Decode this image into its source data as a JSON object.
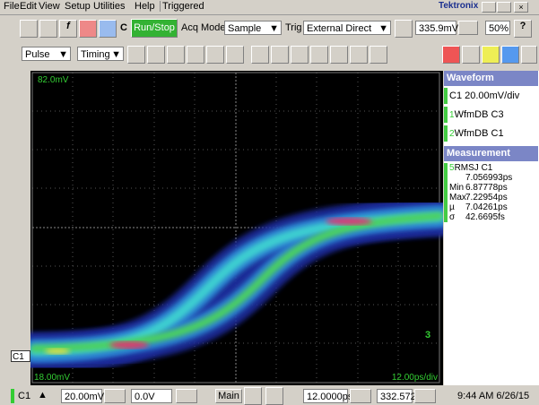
{
  "menu": [
    "File",
    "Edit",
    "View",
    "Setup",
    "Utilities",
    "Help"
  ],
  "status": "Triggered",
  "brand": "Tektronix",
  "toolbar": {
    "c_label": "C",
    "run_stop": "Run/Stop",
    "acq_mode_label": "Acq Mode",
    "acq_mode": "Sample",
    "trig_label": "Trig",
    "trig_source": "External Direct",
    "trig_level": "335.9mV",
    "zoom": "50%"
  },
  "toolbar2": {
    "pulse": "Pulse",
    "timing": "Timing"
  },
  "display": {
    "top_label": "82.0mV",
    "bottom_label": "18.00mV",
    "timebase_label": "12.00ps/div",
    "marker_3": "3",
    "channel_marker": "C1"
  },
  "panel": {
    "waveform_header": "Waveform",
    "scale": "C1 20.00mV/div",
    "items": [
      {
        "index": "1",
        "label": "WfmDB C3"
      },
      {
        "index": "2",
        "label": "WfmDB C1"
      }
    ],
    "measurement_header": "Measurement",
    "measurement": {
      "index": "5",
      "name": "RMSJ C1",
      "value": "7.056993ps",
      "stats": [
        {
          "label": "Min",
          "value": "6.87778ps"
        },
        {
          "label": "Max",
          "value": "7.22954ps"
        },
        {
          "label": "µ",
          "value": "7.04261ps"
        },
        {
          "label": "σ",
          "value": "42.6695fs"
        }
      ]
    }
  },
  "statusbar": {
    "channel": "C1",
    "scale": "20.00mV",
    "offset": "0.0V",
    "timebase": "Main",
    "position": "12.0000ps",
    "record": "332.572",
    "clock": "9:44 AM 6/26/15"
  }
}
